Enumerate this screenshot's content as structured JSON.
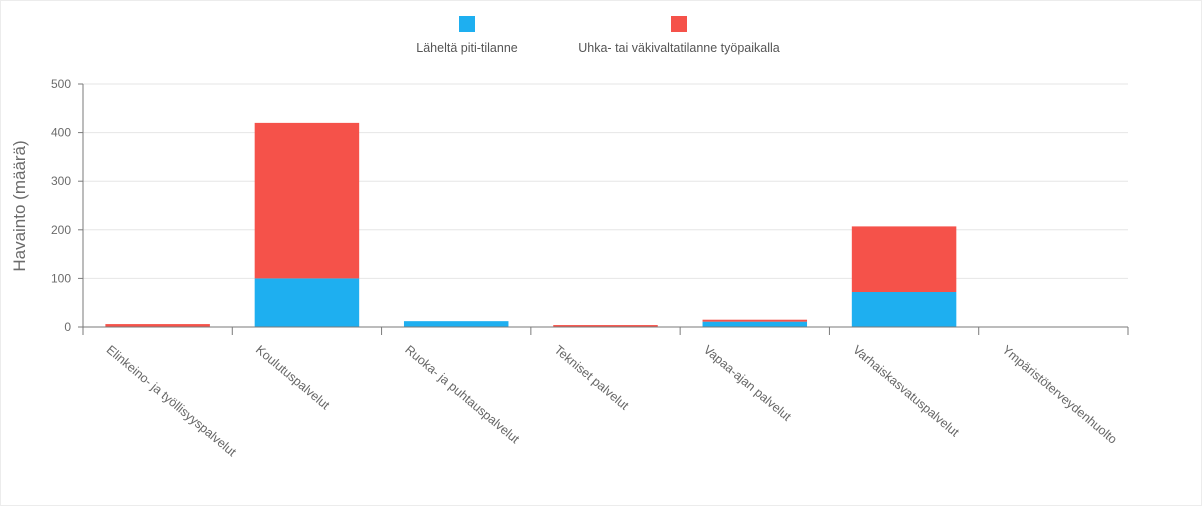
{
  "chart_data": {
    "type": "bar",
    "stacked": true,
    "title": "",
    "xlabel": "",
    "ylabel": "Havainto (määrä)",
    "ylim": [
      0,
      500
    ],
    "yticks": [
      0,
      100,
      200,
      300,
      400,
      500
    ],
    "grid": true,
    "legend_position": "top-center",
    "categories": [
      "Elinkeino- ja työllisyyspalvelut",
      "Koulutuspalvelut",
      "Ruoka- ja puhtauspalvelut",
      "Tekniset palvelut",
      "Vapaa-ajan palvelut",
      "Varhaiskasvatuspalvelut",
      "Ympäristöterveydenhuolto"
    ],
    "series": [
      {
        "name": "Läheltä piti-tilanne",
        "color": "#1eaff0",
        "values": [
          0,
          100,
          12,
          0,
          11,
          72,
          0
        ]
      },
      {
        "name": "Uhka- tai väkivaltatilanne työpaikalla",
        "color": "#f5524a",
        "values": [
          6,
          320,
          0,
          4,
          4,
          135,
          0
        ]
      }
    ]
  }
}
